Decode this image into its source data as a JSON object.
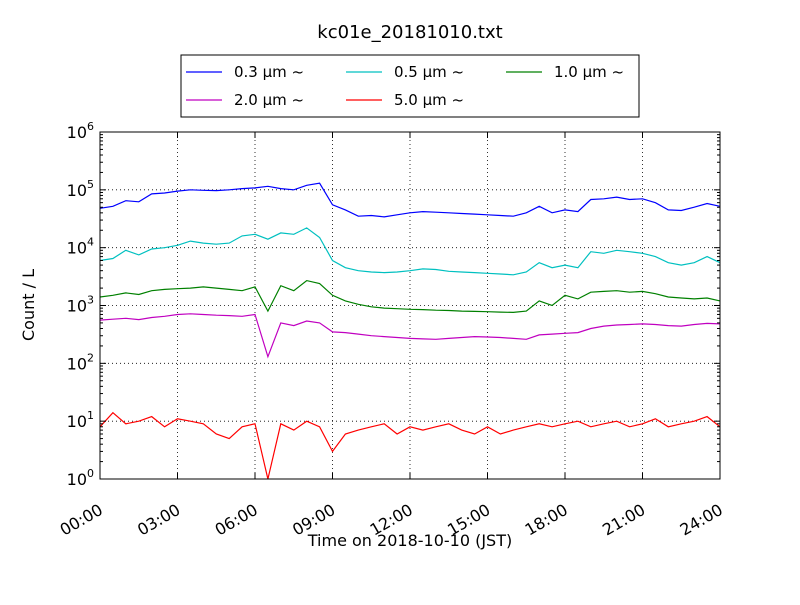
{
  "chart_data": {
    "type": "line",
    "title": "kc01e_20181010.txt",
    "xlabel": "Time on 2018-10-10 (JST)",
    "ylabel": "Count / L",
    "yscale": "log",
    "ylim": [
      1,
      1000000
    ],
    "xlim": [
      "00:00",
      "24:00"
    ],
    "grid": true,
    "legend_placement": "top-center, above plot",
    "xticks": [
      "00:00",
      "03:00",
      "06:00",
      "09:00",
      "12:00",
      "15:00",
      "18:00",
      "21:00",
      "24:00"
    ],
    "yticks": [
      {
        "base": "10",
        "exp": "0"
      },
      {
        "base": "10",
        "exp": "1"
      },
      {
        "base": "10",
        "exp": "2"
      },
      {
        "base": "10",
        "exp": "3"
      },
      {
        "base": "10",
        "exp": "4"
      },
      {
        "base": "10",
        "exp": "5"
      },
      {
        "base": "10",
        "exp": "6"
      }
    ],
    "x": [
      "00:00",
      "00:30",
      "01:00",
      "01:30",
      "02:00",
      "02:30",
      "03:00",
      "03:30",
      "04:00",
      "04:30",
      "05:00",
      "05:30",
      "06:00",
      "06:30",
      "07:00",
      "07:30",
      "08:00",
      "08:30",
      "09:00",
      "09:30",
      "10:00",
      "10:30",
      "11:00",
      "11:30",
      "12:00",
      "12:30",
      "13:00",
      "13:30",
      "14:00",
      "14:30",
      "15:00",
      "15:30",
      "16:00",
      "16:30",
      "17:00",
      "17:30",
      "18:00",
      "18:30",
      "19:00",
      "19:30",
      "20:00",
      "20:30",
      "21:00",
      "21:30",
      "22:00",
      "22:30",
      "23:00",
      "23:30",
      "24:00"
    ],
    "series": [
      {
        "name": "0.3 µm ~",
        "color": "#0000ff",
        "values": [
          48000,
          52000,
          65000,
          62000,
          85000,
          88000,
          95000,
          100000,
          98000,
          97000,
          100000,
          105000,
          108000,
          115000,
          105000,
          100000,
          120000,
          130000,
          55000,
          45000,
          35000,
          36000,
          34000,
          37000,
          40000,
          42000,
          41000,
          40000,
          39000,
          38000,
          37000,
          36000,
          35000,
          40000,
          52000,
          40000,
          45000,
          42000,
          68000,
          70000,
          75000,
          68000,
          70000,
          60000,
          45000,
          44000,
          50000,
          58000,
          52000
        ]
      },
      {
        "name": "0.5 µm ~",
        "color": "#00c0c0",
        "values": [
          6000,
          6500,
          9000,
          7500,
          9500,
          10000,
          11000,
          13000,
          12000,
          11500,
          12000,
          16000,
          17000,
          14000,
          18000,
          17000,
          22000,
          15000,
          6000,
          4500,
          4000,
          3800,
          3700,
          3800,
          4000,
          4300,
          4200,
          3900,
          3800,
          3700,
          3600,
          3500,
          3400,
          3800,
          5500,
          4500,
          5000,
          4500,
          8500,
          8000,
          9000,
          8500,
          8000,
          7000,
          5500,
          5000,
          5500,
          7000,
          5500
        ]
      },
      {
        "name": "1.0 µm ~",
        "color": "#008000",
        "values": [
          1400,
          1500,
          1650,
          1550,
          1800,
          1900,
          1950,
          2000,
          2100,
          2000,
          1900,
          1800,
          2100,
          800,
          2200,
          1800,
          2700,
          2400,
          1500,
          1200,
          1050,
          950,
          900,
          880,
          860,
          850,
          830,
          820,
          800,
          790,
          780,
          770,
          760,
          800,
          1200,
          1000,
          1500,
          1300,
          1700,
          1750,
          1800,
          1700,
          1750,
          1600,
          1400,
          1350,
          1300,
          1350,
          1200
        ]
      },
      {
        "name": "2.0 µm ~",
        "color": "#c000c0",
        "values": [
          560,
          580,
          600,
          570,
          620,
          650,
          700,
          720,
          700,
          680,
          670,
          650,
          700,
          130,
          500,
          450,
          540,
          500,
          350,
          340,
          320,
          300,
          290,
          280,
          270,
          265,
          260,
          270,
          280,
          290,
          285,
          280,
          270,
          260,
          310,
          320,
          330,
          340,
          400,
          440,
          460,
          470,
          480,
          470,
          450,
          440,
          470,
          490,
          480
        ]
      },
      {
        "name": "5.0 µm ~",
        "color": "#ff0000",
        "values": [
          8,
          14,
          9,
          10,
          12,
          8,
          11,
          10,
          9,
          6,
          5,
          8,
          9,
          1,
          9,
          7,
          10,
          8,
          3,
          6,
          7,
          8,
          9,
          6,
          8,
          7,
          8,
          9,
          7,
          6,
          8,
          6,
          7,
          8,
          9,
          8,
          9,
          10,
          8,
          9,
          10,
          8,
          9,
          11,
          8,
          9,
          10,
          12,
          8
        ]
      }
    ]
  }
}
